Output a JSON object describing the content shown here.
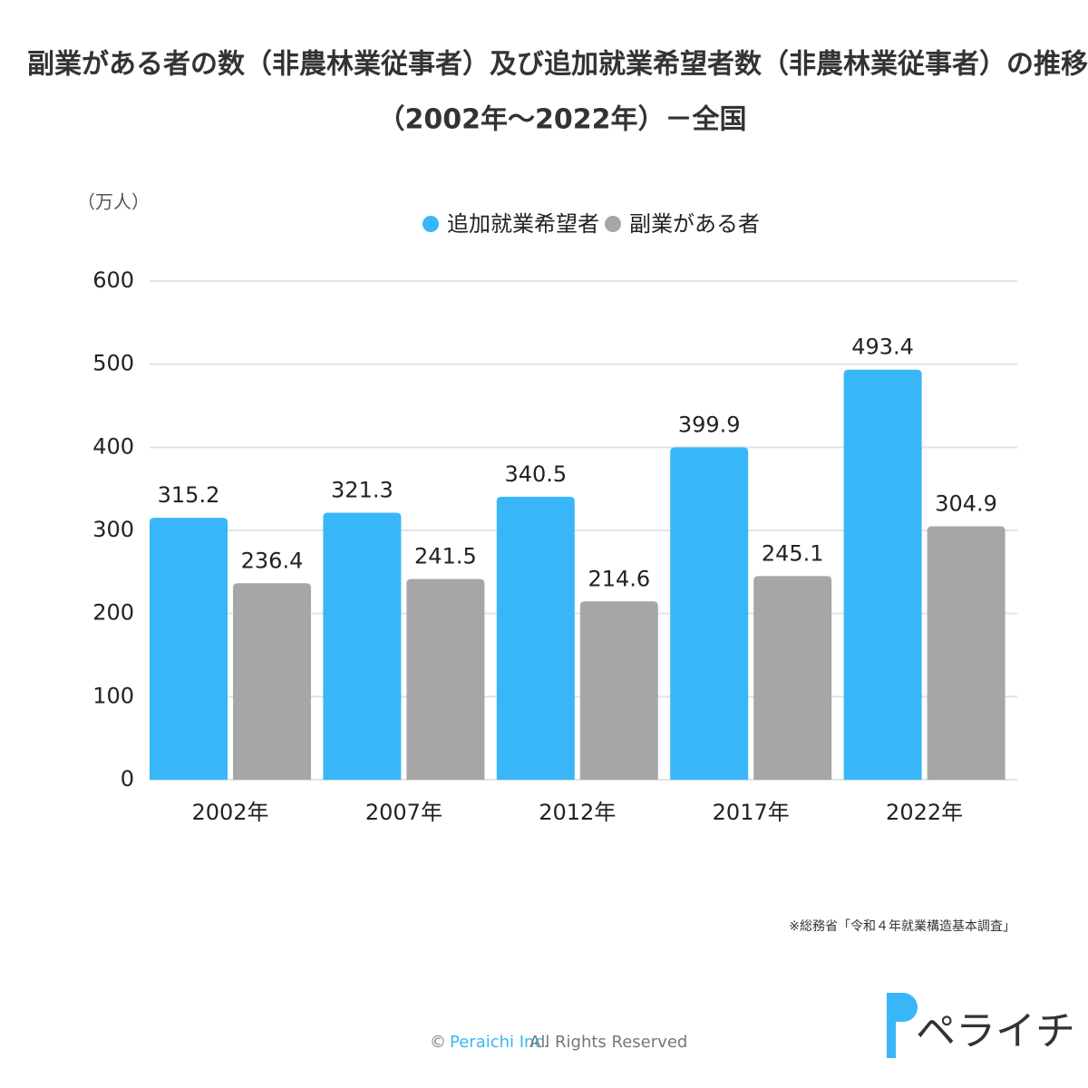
{
  "chart_data": {
    "type": "bar",
    "title": [
      "副業がある者の数（非農林業従事者）及び追加就業希望者数（非農林業従事者）の推移",
      "（2002年～2022年）－全国"
    ],
    "y_axis_label": "（万人）",
    "categories": [
      "2002年",
      "2007年",
      "2012年",
      "2017年",
      "2022年"
    ],
    "series": [
      {
        "name": "追加就業希望者",
        "color": "#38b6f8",
        "values": [
          315.2,
          321.3,
          340.5,
          399.9,
          493.4
        ]
      },
      {
        "name": "副業がある者",
        "color": "#a6a6a6",
        "values": [
          236.4,
          241.5,
          214.6,
          245.1,
          304.9
        ]
      }
    ],
    "ylim": [
      0,
      600
    ],
    "yticks": [
      0,
      100,
      200,
      300,
      400,
      500,
      600
    ],
    "grid": true,
    "legend": "top",
    "source_note": "※総務省「令和４年就業構造基本調査」",
    "footer": {
      "symbol": "©",
      "company": "Peraichi Inc.",
      "rights": "All Rights Reserved"
    },
    "logo": "ペライチ"
  }
}
